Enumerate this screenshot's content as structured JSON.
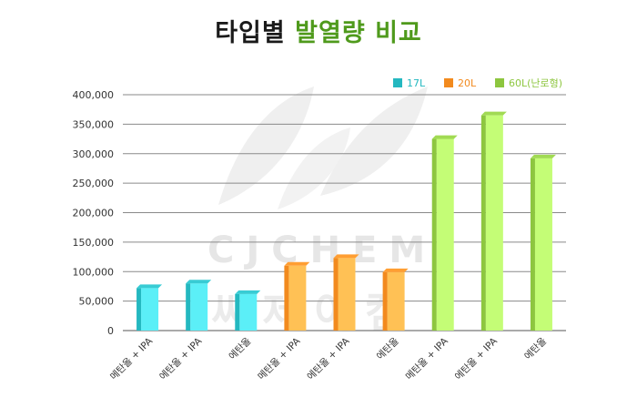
{
  "title": {
    "part1": "타입별",
    "part2": "발열량 비교"
  },
  "watermark": {
    "en": "CJCHEM",
    "ko": "씨제이켐"
  },
  "chart_data": {
    "type": "bar",
    "categories": [
      "메탄올 + IPA",
      "에탄올 + IPA",
      "에탄올",
      "메탄올 + IPA",
      "에탄올 + IPA",
      "에탄올",
      "메탄올 + IPA",
      "에탄올 + IPA",
      "에탄올"
    ],
    "values": [
      72000,
      80000,
      62000,
      110000,
      123000,
      99000,
      325000,
      365000,
      292000
    ],
    "groups": [
      "17L",
      "17L",
      "17L",
      "20L",
      "20L",
      "20L",
      "60L(난로형)",
      "60L(난로형)",
      "60L(난로형)"
    ],
    "legend": [
      {
        "name": "17L",
        "color": "#24b8c0"
      },
      {
        "name": "20L",
        "color": "#f28a1e"
      },
      {
        "name": "60L(난로형)",
        "color": "#8dc63f"
      }
    ],
    "yticks": [
      "0",
      "50,000",
      "100,000",
      "150,000",
      "200,000",
      "250,000",
      "300,000",
      "350,000",
      "400,000"
    ],
    "ylim": [
      0,
      400000
    ],
    "grid": true,
    "legend_position": "top-right"
  }
}
